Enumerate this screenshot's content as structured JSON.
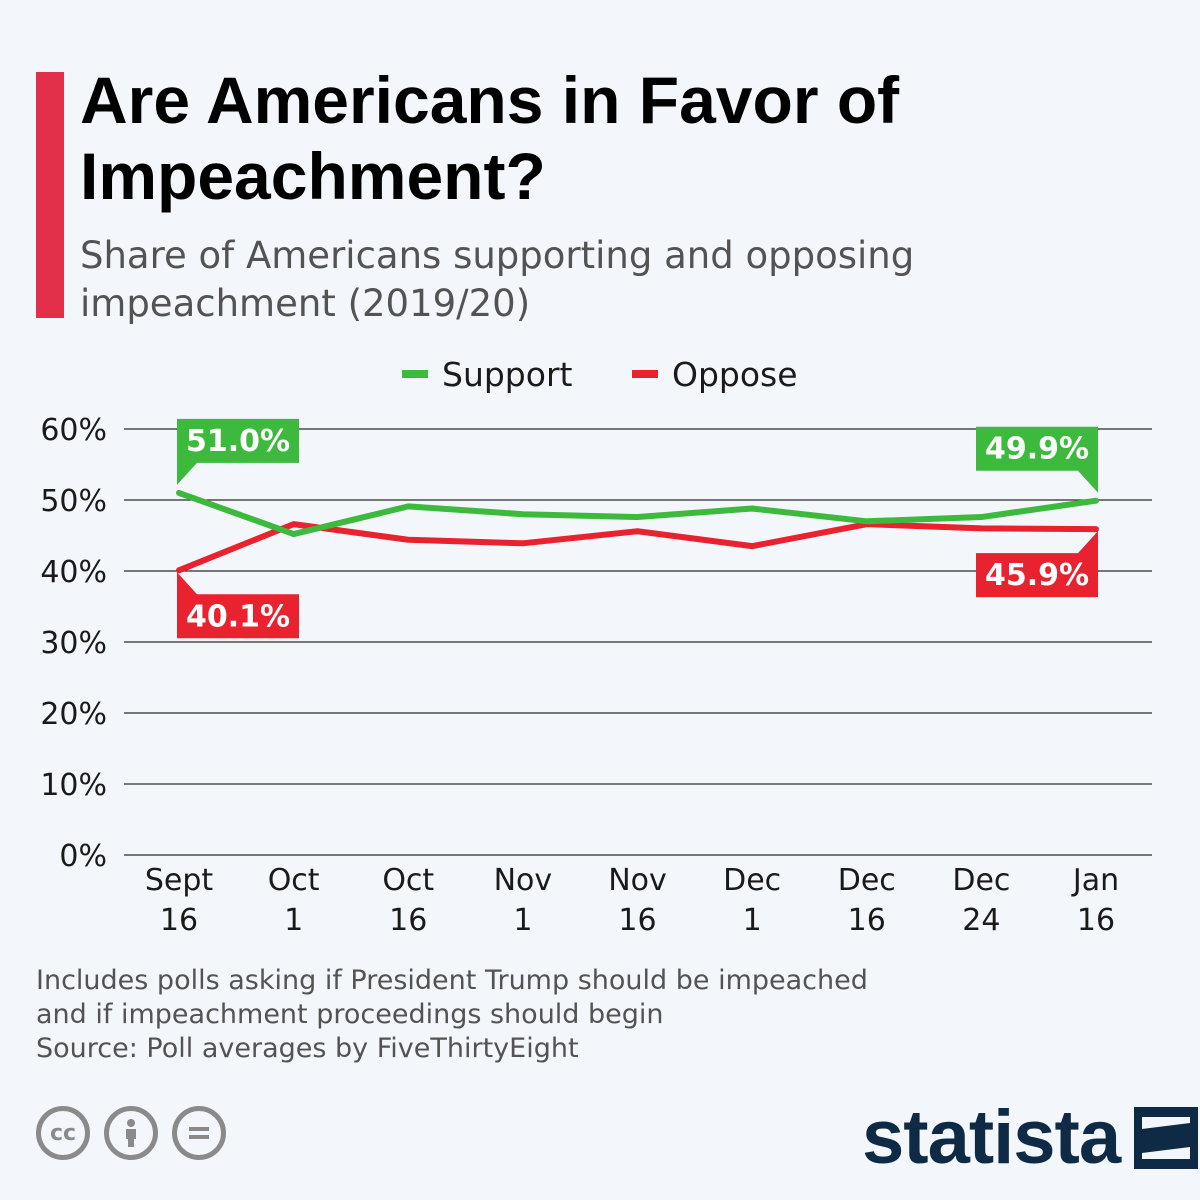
{
  "header": {
    "title": "Are Americans in Favor of Impeachment?",
    "subtitle": "Share of Americans supporting and opposing impeachment (2019/20)",
    "accent_color": "#e3304a"
  },
  "legend": [
    {
      "label": "Support",
      "color": "#3dba3d"
    },
    {
      "label": "Oppose",
      "color": "#e8222e"
    }
  ],
  "chart_data": {
    "type": "line",
    "categories": [
      "Sept 16",
      "Oct 1",
      "Oct 16",
      "Nov 1",
      "Nov 16",
      "Dec 1",
      "Dec 16",
      "Dec 24",
      "Jan 16"
    ],
    "category_lines": [
      [
        "Sept",
        "16"
      ],
      [
        "Oct",
        "1"
      ],
      [
        "Oct",
        "16"
      ],
      [
        "Nov",
        "1"
      ],
      [
        "Nov",
        "16"
      ],
      [
        "Dec",
        "1"
      ],
      [
        "Dec",
        "16"
      ],
      [
        "Dec",
        "24"
      ],
      [
        "Jan",
        "16"
      ]
    ],
    "series": [
      {
        "name": "Support",
        "color": "#3dba3d",
        "values": [
          51.0,
          45.2,
          49.1,
          48.0,
          47.6,
          48.8,
          47.0,
          47.6,
          49.9
        ]
      },
      {
        "name": "Oppose",
        "color": "#e8222e",
        "values": [
          40.1,
          46.6,
          44.4,
          43.9,
          45.6,
          43.5,
          46.6,
          46.0,
          45.9
        ]
      }
    ],
    "y_ticks": [
      0,
      10,
      20,
      30,
      40,
      50,
      60
    ],
    "y_tick_labels": [
      "0%",
      "10%",
      "20%",
      "30%",
      "40%",
      "50%",
      "60%"
    ],
    "ylim": [
      0,
      60
    ],
    "grid": true,
    "legend_position": "top-center",
    "data_labels": [
      {
        "series": 0,
        "index": 0,
        "text": "51.0%",
        "placement": "above"
      },
      {
        "series": 0,
        "index": 8,
        "text": "49.9%",
        "placement": "above"
      },
      {
        "series": 1,
        "index": 0,
        "text": "40.1%",
        "placement": "below"
      },
      {
        "series": 1,
        "index": 8,
        "text": "45.9%",
        "placement": "below"
      }
    ]
  },
  "footnote": {
    "lines": [
      "Includes polls asking if President Trump should be impeached",
      "and if impeachment proceedings should begin",
      "Source: Poll averages by FiveThirtyEight"
    ]
  },
  "license_icons": [
    "cc-icon",
    "attribution-icon",
    "no-derivatives-icon"
  ],
  "brand": {
    "name": "statista",
    "color": "#0f2a44"
  }
}
